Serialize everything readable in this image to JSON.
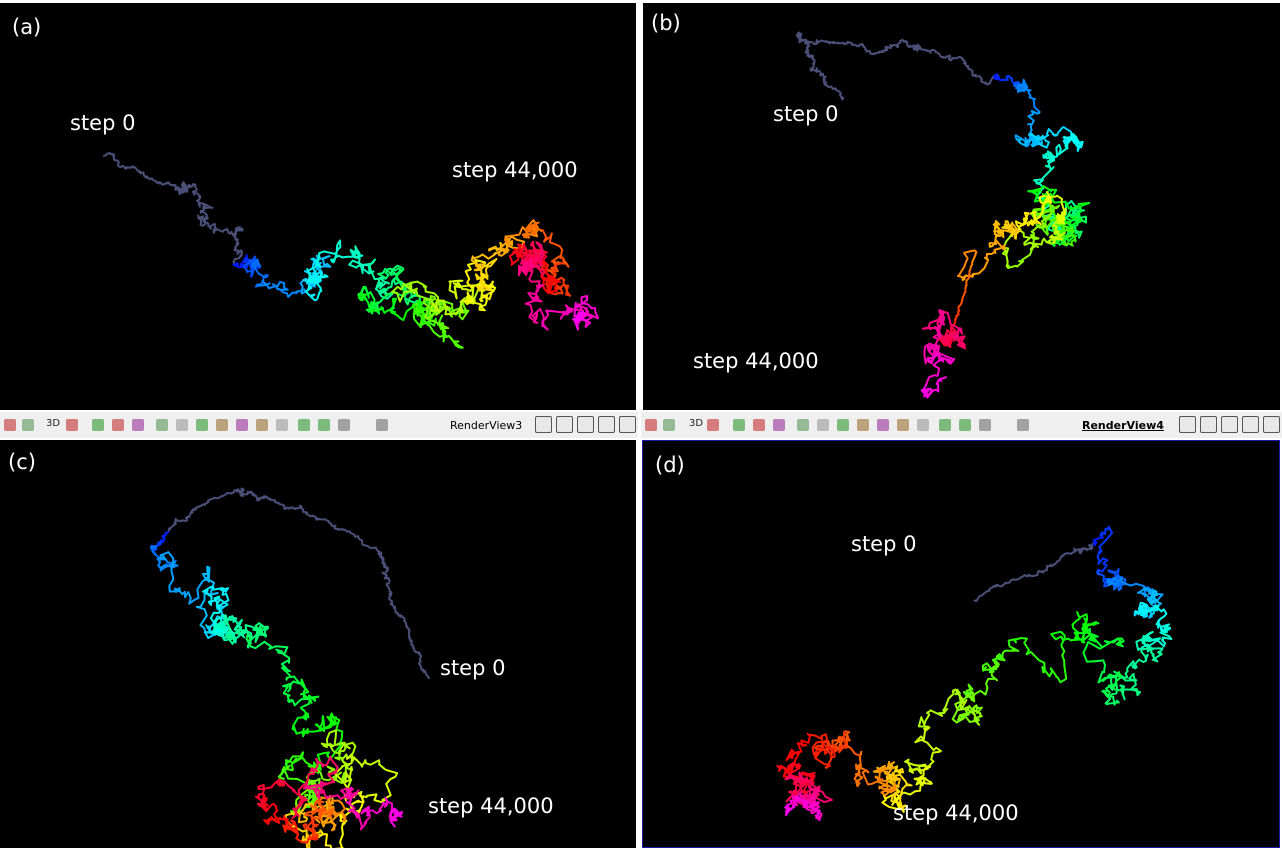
{
  "panels": [
    {
      "label": "(a)",
      "start_label": "step 0",
      "end_label": "step 44,000"
    },
    {
      "label": "(b)",
      "start_label": "step 0",
      "end_label": "step 44,000"
    },
    {
      "label": "(c)",
      "start_label": "step 0",
      "end_label": "step 44,000"
    },
    {
      "label": "(d)",
      "start_label": "step 0",
      "end_label": "step 44,000"
    }
  ],
  "toolbars": [
    {
      "button_3d": "3D",
      "view_name": "RenderView3"
    },
    {
      "button_3d": "3D",
      "view_name": "RenderView4"
    }
  ]
}
